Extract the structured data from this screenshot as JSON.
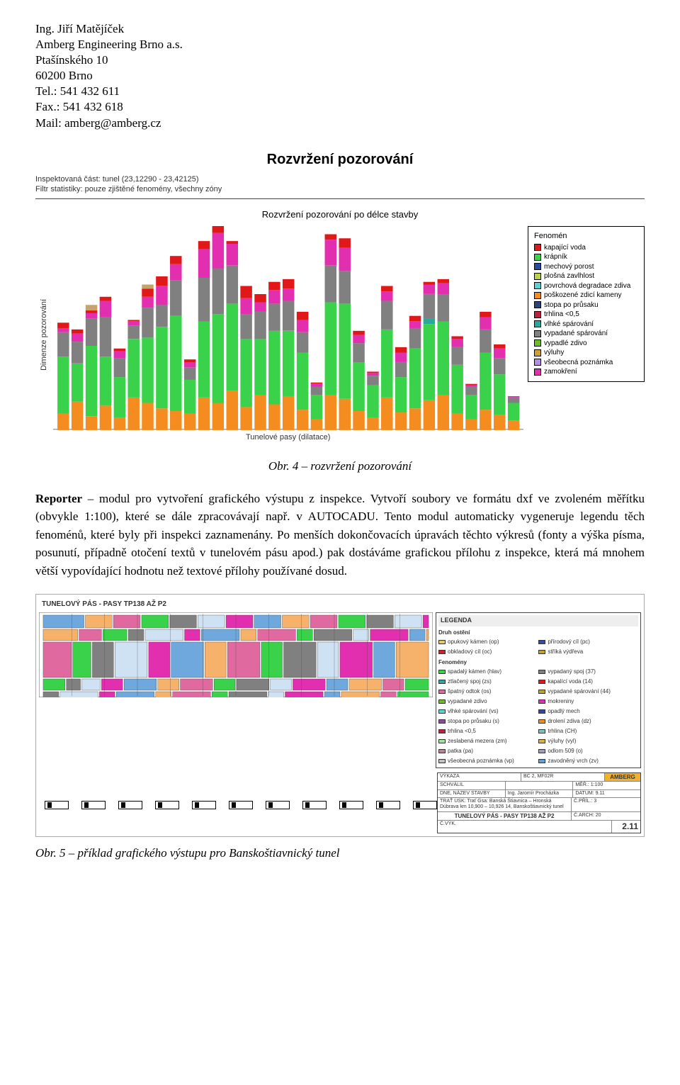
{
  "header": {
    "name": "Ing. Jiří Matějíček",
    "company": "Amberg Engineering Brno a.s.",
    "street": "Ptašínského 10",
    "city": "60200 Brno",
    "tel": "Tel.: 541 432 611",
    "fax": "Fax.: 541 432 618",
    "mail": "Mail: amberg@amberg.cz"
  },
  "chart": {
    "main_title": "Rozvržení pozorování",
    "meta1": "Inspektovaná část: tunel (23,12290 - 23,42125)",
    "meta2": "Filtr statistiky: pouze zjištěné fenomény, všechny zóny",
    "subtitle": "Rozvržení pozorování po délce stavby",
    "y_label": "Dimenze pozorování",
    "x_label": "Tunelové pasy (dilatace)",
    "ymax": 1500,
    "bar_gap": 3,
    "series_order": [
      "orange",
      "green",
      "teal",
      "gray",
      "magenta",
      "red",
      "tan"
    ],
    "colors": {
      "orange": "#f58c1f",
      "green": "#3ad24a",
      "teal": "#2aa89a",
      "gray": "#808080",
      "magenta": "#e22fb0",
      "red": "#e01818",
      "tan": "#c7a36a"
    },
    "bars": [
      {
        "orange": 120,
        "green": 420,
        "teal": 0,
        "gray": 180,
        "magenta": 30,
        "red": 40,
        "tan": 0
      },
      {
        "orange": 210,
        "green": 280,
        "teal": 0,
        "gray": 160,
        "magenta": 60,
        "red": 30,
        "tan": 0
      },
      {
        "orange": 100,
        "green": 520,
        "teal": 0,
        "gray": 200,
        "magenta": 40,
        "red": 20,
        "tan": 40
      },
      {
        "orange": 180,
        "green": 360,
        "teal": 0,
        "gray": 290,
        "magenta": 120,
        "red": 30,
        "tan": 0
      },
      {
        "orange": 90,
        "green": 300,
        "teal": 0,
        "gray": 140,
        "magenta": 50,
        "red": 20,
        "tan": 0
      },
      {
        "orange": 240,
        "green": 430,
        "teal": 0,
        "gray": 100,
        "magenta": 30,
        "red": 10,
        "tan": 0
      },
      {
        "orange": 200,
        "green": 480,
        "teal": 0,
        "gray": 220,
        "magenta": 80,
        "red": 60,
        "tan": 30
      },
      {
        "orange": 160,
        "green": 600,
        "teal": 0,
        "gray": 160,
        "magenta": 140,
        "red": 70,
        "tan": 0
      },
      {
        "orange": 140,
        "green": 700,
        "teal": 0,
        "gray": 260,
        "magenta": 120,
        "red": 60,
        "tan": 0
      },
      {
        "orange": 120,
        "green": 250,
        "teal": 0,
        "gray": 90,
        "magenta": 40,
        "red": 20,
        "tan": 0
      },
      {
        "orange": 240,
        "green": 560,
        "teal": 0,
        "gray": 320,
        "magenta": 210,
        "red": 60,
        "tan": 0
      },
      {
        "orange": 200,
        "green": 650,
        "teal": 0,
        "gray": 340,
        "magenta": 260,
        "red": 50,
        "tan": 0
      },
      {
        "orange": 290,
        "green": 640,
        "teal": 0,
        "gray": 280,
        "magenta": 160,
        "red": 20,
        "tan": 0
      },
      {
        "orange": 170,
        "green": 500,
        "teal": 0,
        "gray": 180,
        "magenta": 120,
        "red": 90,
        "tan": 0
      },
      {
        "orange": 260,
        "green": 410,
        "teal": 0,
        "gray": 200,
        "magenta": 70,
        "red": 60,
        "tan": 0
      },
      {
        "orange": 190,
        "green": 540,
        "teal": 0,
        "gray": 200,
        "magenta": 100,
        "red": 60,
        "tan": 0
      },
      {
        "orange": 250,
        "green": 480,
        "teal": 0,
        "gray": 220,
        "magenta": 90,
        "red": 70,
        "tan": 0
      },
      {
        "orange": 150,
        "green": 420,
        "teal": 0,
        "gray": 150,
        "magenta": 90,
        "red": 60,
        "tan": 0
      },
      {
        "orange": 80,
        "green": 180,
        "teal": 0,
        "gray": 60,
        "magenta": 20,
        "red": 10,
        "tan": 0
      },
      {
        "orange": 260,
        "green": 680,
        "teal": 0,
        "gray": 270,
        "magenta": 190,
        "red": 40,
        "tan": 0
      },
      {
        "orange": 230,
        "green": 700,
        "teal": 0,
        "gray": 240,
        "magenta": 170,
        "red": 70,
        "tan": 0
      },
      {
        "orange": 140,
        "green": 360,
        "teal": 0,
        "gray": 140,
        "magenta": 60,
        "red": 30,
        "tan": 0
      },
      {
        "orange": 90,
        "green": 240,
        "teal": 0,
        "gray": 70,
        "magenta": 20,
        "red": 10,
        "tan": 0
      },
      {
        "orange": 240,
        "green": 500,
        "teal": 0,
        "gray": 210,
        "magenta": 70,
        "red": 40,
        "tan": 0
      },
      {
        "orange": 130,
        "green": 260,
        "teal": 0,
        "gray": 110,
        "magenta": 70,
        "red": 40,
        "tan": 0
      },
      {
        "orange": 160,
        "green": 440,
        "teal": 0,
        "gray": 150,
        "magenta": 50,
        "red": 40,
        "tan": 0
      },
      {
        "orange": 220,
        "green": 560,
        "teal": 40,
        "gray": 180,
        "magenta": 70,
        "red": 20,
        "tan": 0
      },
      {
        "orange": 260,
        "green": 540,
        "teal": 0,
        "gray": 200,
        "magenta": 80,
        "red": 30,
        "tan": 0
      },
      {
        "orange": 120,
        "green": 360,
        "teal": 0,
        "gray": 130,
        "magenta": 60,
        "red": 20,
        "tan": 0
      },
      {
        "orange": 80,
        "green": 180,
        "teal": 0,
        "gray": 60,
        "magenta": 10,
        "red": 10,
        "tan": 0
      },
      {
        "orange": 150,
        "green": 420,
        "teal": 0,
        "gray": 170,
        "magenta": 90,
        "red": 40,
        "tan": 0
      },
      {
        "orange": 110,
        "green": 300,
        "teal": 0,
        "gray": 120,
        "magenta": 70,
        "red": 30,
        "tan": 0
      },
      {
        "orange": 70,
        "green": 130,
        "teal": 0,
        "gray": 40,
        "magenta": 10,
        "red": 0,
        "tan": 0
      }
    ],
    "legend_title": "Fenomén",
    "legend": [
      {
        "label": "kapající voda",
        "color": "#e01818"
      },
      {
        "label": "krápník",
        "color": "#3ad24a"
      },
      {
        "label": "mechový porost",
        "color": "#2b4aa0"
      },
      {
        "label": "plošná zavlhlost",
        "color": "#b9d24a"
      },
      {
        "label": "povrchová degradace zdiva",
        "color": "#5fd0d0"
      },
      {
        "label": "poškozené zdicí kameny",
        "color": "#f58c1f"
      },
      {
        "label": "stopa po průsaku",
        "color": "#2a447f"
      },
      {
        "label": "trhlina <0,5",
        "color": "#c02040"
      },
      {
        "label": "vlhké spárování",
        "color": "#2aa89a"
      },
      {
        "label": "vypadané spárování",
        "color": "#808080"
      },
      {
        "label": "vypadlé zdivo",
        "color": "#6bbf1f"
      },
      {
        "label": "výluhy",
        "color": "#cfa034"
      },
      {
        "label": "všeobecná poznámka",
        "color": "#b090e0"
      },
      {
        "label": "zamokření",
        "color": "#e22fb0"
      }
    ]
  },
  "caption1": "Obr. 4 – rozvržení pozorování",
  "body": {
    "runin": "Reporter",
    "text": " – modul pro vytvoření grafického výstupu z inspekce. Vytvoří soubory ve formátu dxf ve zvoleném měřítku (obvykle 1:100), které se dále zpracovávají např. v AUTOCADU. Tento modul automaticky vygeneruje legendu těch fenoménů, které byly při inspekci zaznamenány. Po menších dokončovacích úpravách těchto výkresů (fonty a výška písma, posunutí, případně otočení textů v tunelovém pásu apod.) pak dostáváme grafickou přílohu z inspekce, která má mnohem větší vypovídající hodnotu než textové přílohy používané dosud."
  },
  "drawing": {
    "title": "TUNELOVÝ PÁS - PASY TP138 AŽ P2",
    "legend_title": "LEGENDA",
    "section1": "Druh ostění",
    "items1": [
      {
        "label": "opukový kámen (op)",
        "color": "#e8c66a"
      },
      {
        "label": "přírodový cíl (pc)",
        "color": "#3a4aa0"
      },
      {
        "label": "obkladový cíl (oc)",
        "color": "#d02030"
      },
      {
        "label": "stříká výdřeva",
        "color": "#c0a030"
      }
    ],
    "section2": "Fenomény",
    "items2": [
      {
        "label": "spadalý kámen (hlav)",
        "color": "#3ad24a"
      },
      {
        "label": "vypadaný spoj (37)",
        "color": "#808080"
      },
      {
        "label": "ztlačený spoj (zs)",
        "color": "#2aa89a"
      },
      {
        "label": "kapalící voda (14)",
        "color": "#e01818"
      },
      {
        "label": "špatný odtok (os)",
        "color": "#e06aa0"
      },
      {
        "label": "vypadané spárování (44)",
        "color": "#c0a030"
      },
      {
        "label": "vypadané zdivo",
        "color": "#6bbf1f"
      },
      {
        "label": "mokreniny",
        "color": "#e22fb0"
      },
      {
        "label": "vlhké spárování (vs)",
        "color": "#5fd0d0"
      },
      {
        "label": "opadlý mech",
        "color": "#2b4aa0"
      },
      {
        "label": "stopa po průsaku (s)",
        "color": "#8e4aa0"
      },
      {
        "label": "drolení zdiva (dz)",
        "color": "#f58c1f"
      },
      {
        "label": "trhlina <0,5",
        "color": "#c02040"
      },
      {
        "label": "trhlina (CH)",
        "color": "#80c0c0"
      },
      {
        "label": "zeslabená mezera (zm)",
        "color": "#a0e0a0"
      },
      {
        "label": "výluhy (vyl)",
        "color": "#e0b040"
      },
      {
        "label": "patka (pa)",
        "color": "#c080a0"
      },
      {
        "label": "odlom 509 (o)",
        "color": "#a0a0c0"
      },
      {
        "label": "všeobecná poznámka (vp)",
        "color": "#c0c0c0"
      },
      {
        "label": "zavodněný vrch (zv)",
        "color": "#60a0e0"
      }
    ],
    "strip": {
      "bgcolors": [
        "#6fa8dc",
        "#f6b26b",
        "#e06aa0",
        "#3ad24a",
        "#808080",
        "#cfe2f3",
        "#e22fb0"
      ],
      "band_heights": [
        18,
        16,
        50,
        16,
        20
      ]
    },
    "titleblock": {
      "logo": "AMBERG",
      "rows": [
        [
          "VÝKAZA",
          "BC 2, MF02R"
        ],
        [
          "SCHVÁLIL",
          ""
        ],
        [
          "DNE, NÁZEV STAVBY",
          "Ing. Jaromír Procházka"
        ],
        [
          "TRAŤ ÚSK",
          "Trať Gsa: Banská Štiavnica – Hronská Dúbrava  km 10,900 – 10,926 14, Banskoštiavnický tunel"
        ]
      ],
      "main": "TUNELOVÝ PÁS - PASY TP138 AŽ P2",
      "meta": [
        [
          "MĚŘ.",
          "1:100"
        ],
        [
          "DATUM",
          "9.11"
        ],
        [
          "Č.PŘÍL.",
          "3"
        ],
        [
          "Č.ARCH",
          "20"
        ]
      ],
      "num_label": "Č.VÝK.",
      "num": "2.11"
    }
  },
  "caption2": "Obr. 5 – příklad grafického výstupu pro Banskoštiavnický tunel"
}
